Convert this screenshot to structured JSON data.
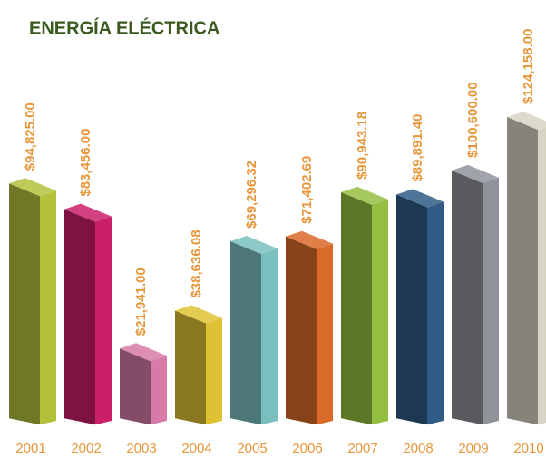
{
  "chart_data": {
    "type": "bar3d",
    "title": "ENERGÍA ELÉCTRICA",
    "categories": [
      "2001",
      "2002",
      "2003",
      "2004",
      "2005",
      "2006",
      "2007",
      "2008",
      "2009",
      "2010"
    ],
    "values": [
      94825.0,
      83456.0,
      21941.0,
      38636.08,
      69296.32,
      71402.69,
      90943.18,
      89891.4,
      100600.0,
      124158.0
    ],
    "value_labels": [
      "$94,825.00",
      "$83,456.00",
      "$21,941.00",
      "$38,636.08",
      "$69,296.32",
      "$71,402.69",
      "$90,943.18",
      "$89,891.40",
      "$100,600.00",
      "$124,158.00"
    ],
    "colors": [
      "#b3c23a",
      "#cc1f6a",
      "#d67aa8",
      "#dfc234",
      "#7abfc0",
      "#da6a28",
      "#94be40",
      "#2f5b86",
      "#8f939a",
      "#d8d4c4"
    ]
  }
}
